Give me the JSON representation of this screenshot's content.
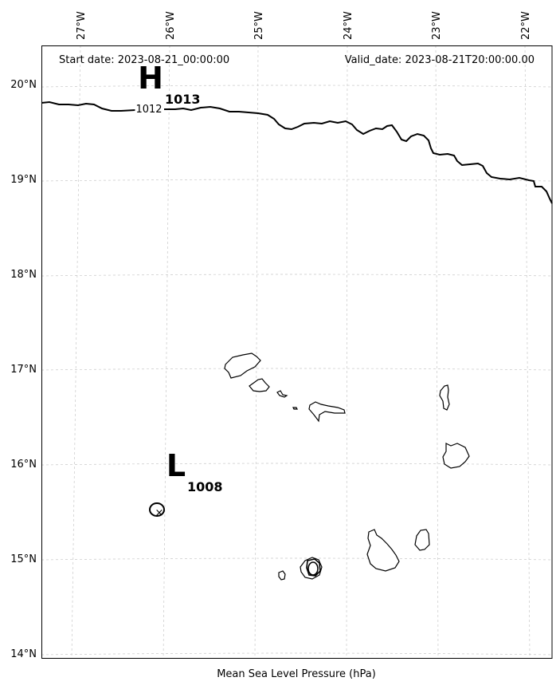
{
  "header": {
    "start_date": "Start date: 2023-08-21_00:00:00",
    "valid_date": "Valid_date: 2023-08-21T20:00:00.00"
  },
  "axes": {
    "longitude_labels": [
      "27°W",
      "26°W",
      "25°W",
      "24°W",
      "23°W",
      "22°W"
    ],
    "latitude_labels": [
      "20°N",
      "19°N",
      "18°N",
      "17°N",
      "16°N",
      "15°N",
      "14°N"
    ]
  },
  "xlabel": "Mean Sea Level Pressure (hPa)",
  "chart_data": {
    "type": "contour_map",
    "variable": "Mean Sea Level Pressure",
    "units": "hPa",
    "extent": {
      "lon": [
        -27.3,
        -21.6
      ],
      "lat": [
        13.95,
        20.4
      ]
    },
    "grid": true,
    "contours": [
      {
        "level": 1012,
        "label": "1012"
      }
    ],
    "pressure_centers": [
      {
        "type": "H",
        "symbol": "H",
        "value": "1013",
        "lon": -26.15,
        "lat": 20.05
      },
      {
        "type": "L",
        "symbol": "L",
        "value": "1008",
        "lon": -25.85,
        "lat": 15.95
      }
    ],
    "low_center_marker": "×"
  },
  "colors": {
    "contour": "#000000",
    "coastline": "#000000",
    "grid": "#c8c8c8"
  }
}
